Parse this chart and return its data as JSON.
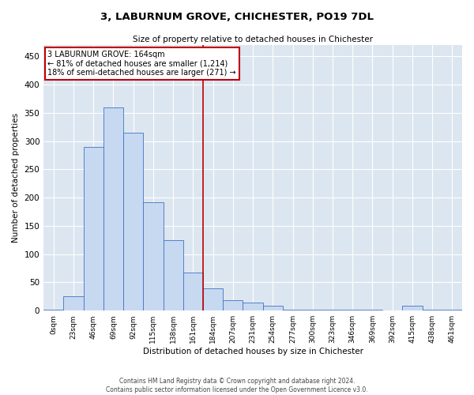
{
  "title": "3, LABURNUM GROVE, CHICHESTER, PO19 7DL",
  "subtitle": "Size of property relative to detached houses in Chichester",
  "xlabel": "Distribution of detached houses by size in Chichester",
  "ylabel": "Number of detached properties",
  "categories": [
    "0sqm",
    "23sqm",
    "46sqm",
    "69sqm",
    "92sqm",
    "115sqm",
    "138sqm",
    "161sqm",
    "184sqm",
    "207sqm",
    "231sqm",
    "254sqm",
    "277sqm",
    "300sqm",
    "323sqm",
    "346sqm",
    "369sqm",
    "392sqm",
    "415sqm",
    "438sqm",
    "461sqm"
  ],
  "bar_heights": [
    2,
    25,
    290,
    360,
    315,
    192,
    125,
    68,
    40,
    18,
    14,
    8,
    2,
    2,
    2,
    2,
    2,
    0,
    8,
    2,
    2
  ],
  "bar_color": "#c6d9f0",
  "bar_edge_color": "#4472c4",
  "background_color": "#dce6f1",
  "grid_color": "#ffffff",
  "marker_label": "3 LABURNUM GROVE: 164sqm",
  "annotation_line1": "← 81% of detached houses are smaller (1,214)",
  "annotation_line2": "18% of semi-detached houses are larger (271) →",
  "property_line_color": "#c00000",
  "annotation_box_edge": "#c00000",
  "ylim": [
    0,
    470
  ],
  "yticks": [
    0,
    50,
    100,
    150,
    200,
    250,
    300,
    350,
    400,
    450
  ],
  "marker_index": 7,
  "footer1": "Contains HM Land Registry data © Crown copyright and database right 2024.",
  "footer2": "Contains public sector information licensed under the Open Government Licence v3.0."
}
